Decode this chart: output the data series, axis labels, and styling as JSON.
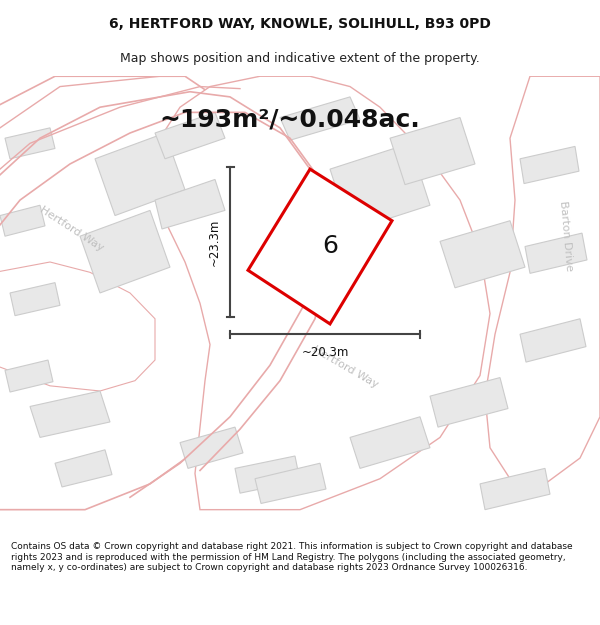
{
  "title": "6, HERTFORD WAY, KNOWLE, SOLIHULL, B93 0PD",
  "subtitle": "Map shows position and indicative extent of the property.",
  "area_label": "~193m²/~0.048ac.",
  "plot_number": "6",
  "dim_width": "~20.3m",
  "dim_height": "~23.3m",
  "footer": "Contains OS data © Crown copyright and database right 2021. This information is subject to Crown copyright and database rights 2023 and is reproduced with the permission of HM Land Registry. The polygons (including the associated geometry, namely x, y co-ordinates) are subject to Crown copyright and database rights 2023 Ordnance Survey 100026316.",
  "bg_map": "#f7f7f7",
  "road_fill": "#ffffff",
  "road_stroke": "#e8aaaa",
  "building_fill": "#e8e8e8",
  "building_stroke": "#cccccc",
  "plot_stroke": "#dd0000",
  "dim_color": "#444444",
  "road_label_color": "#bbbbbb",
  "title_fontsize": 10,
  "subtitle_fontsize": 9,
  "area_fontsize": 18,
  "plot_num_fontsize": 18,
  "footer_fontsize": 6.5
}
